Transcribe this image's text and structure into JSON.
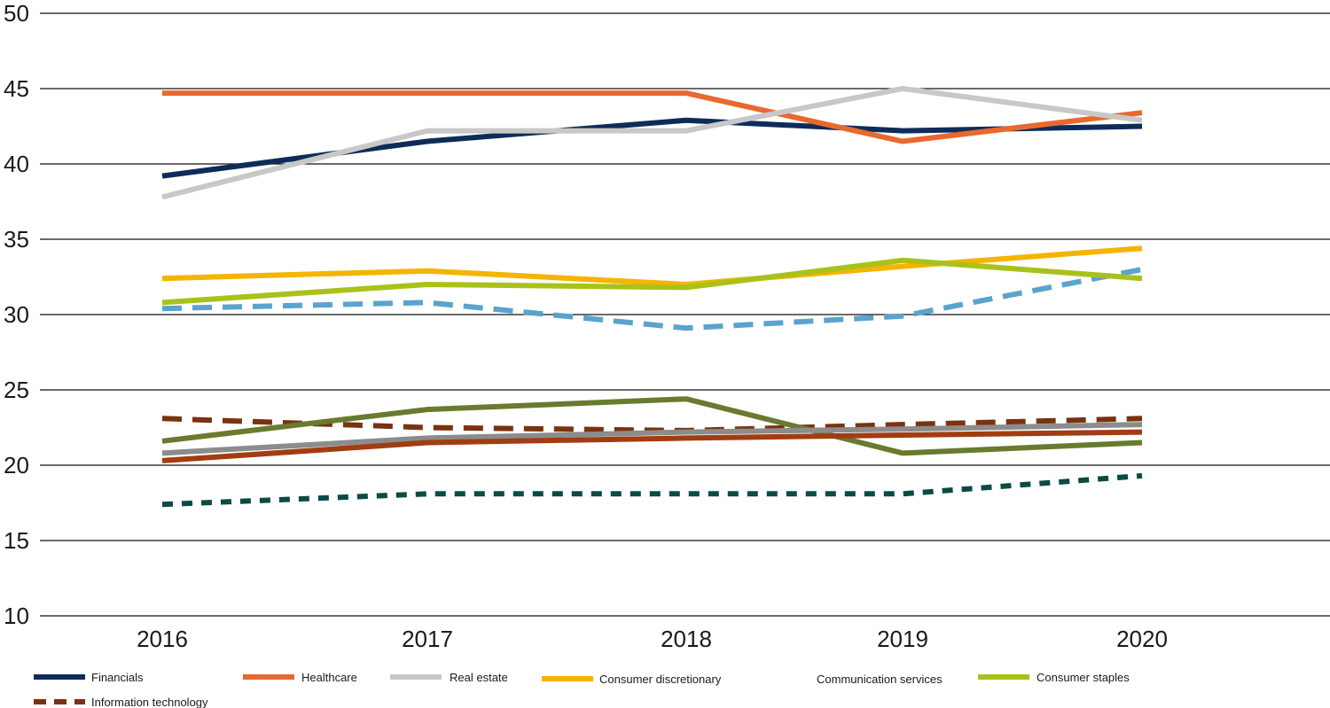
{
  "chart_data": {
    "type": "line",
    "title": "",
    "xlabel": "",
    "ylabel": "",
    "x": [
      "2016",
      "2017",
      "2018",
      "2019",
      "2020"
    ],
    "ylim": [
      10,
      50
    ],
    "yticks": [
      10,
      15,
      20,
      25,
      30,
      35,
      40,
      45,
      50
    ],
    "grid": true,
    "legend_position": "bottom",
    "series": [
      {
        "name": "Financials",
        "color": "#0e2c5a",
        "dash": "solid",
        "legend": true,
        "values": [
          39.2,
          41.5,
          42.9,
          42.2,
          42.5
        ]
      },
      {
        "name": "Healthcare",
        "color": "#e8692f",
        "dash": "solid",
        "legend": true,
        "values": [
          44.7,
          44.7,
          44.7,
          41.5,
          43.4
        ]
      },
      {
        "name": "Real estate",
        "color": "#c8c8c8",
        "dash": "solid",
        "legend": true,
        "values": [
          37.8,
          42.2,
          42.2,
          45.0,
          42.9
        ]
      },
      {
        "name": "Consumer discretionary",
        "color": "#f5b400",
        "dash": "solid",
        "legend": true,
        "values": [
          32.4,
          32.9,
          32.0,
          33.2,
          34.4
        ]
      },
      {
        "name": "Communication services",
        "color": "#5ba3cc",
        "dash": "dashed",
        "legend": true,
        "legend_swatch": false,
        "values": [
          30.4,
          30.8,
          29.1,
          29.9,
          33.0
        ]
      },
      {
        "name": "Consumer staples",
        "color": "#a9c21a",
        "dash": "solid",
        "legend": true,
        "values": [
          30.8,
          32.0,
          31.8,
          33.6,
          32.4
        ]
      },
      {
        "name": "Information technology",
        "color": "#7a3210",
        "dash": "dashed",
        "legend": true,
        "values": [
          23.1,
          22.5,
          22.3,
          22.7,
          23.1
        ]
      },
      {
        "name": "",
        "color": "#687b2e",
        "dash": "solid",
        "legend": false,
        "values": [
          21.6,
          23.7,
          24.4,
          20.8,
          21.5
        ]
      },
      {
        "name": "",
        "color": "#8c8c8c",
        "dash": "solid",
        "legend": false,
        "values": [
          20.8,
          21.8,
          22.2,
          22.4,
          22.7
        ]
      },
      {
        "name": "",
        "color": "#a13d12",
        "dash": "solid",
        "legend": false,
        "values": [
          20.3,
          21.5,
          21.8,
          22.0,
          22.2
        ]
      },
      {
        "name": "",
        "color": "#0b4b44",
        "dash": "dotted",
        "legend": false,
        "values": [
          17.4,
          18.1,
          18.1,
          18.1,
          19.3
        ]
      }
    ]
  }
}
